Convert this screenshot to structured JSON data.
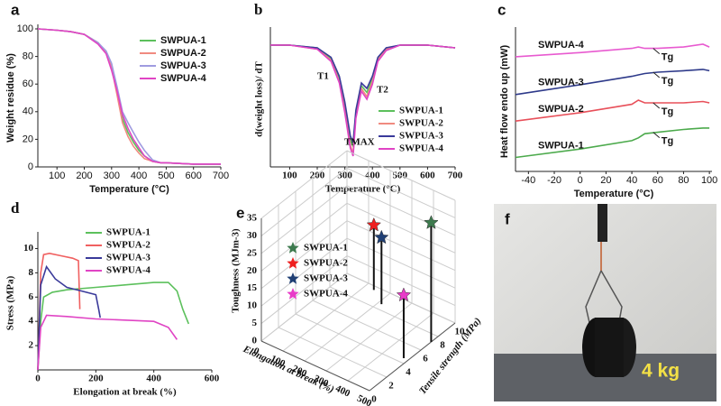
{
  "chart_data": [
    {
      "type": "line",
      "label": "a",
      "xlabel": "Temperature (°C)",
      "ylabel": "Weight residue (%)",
      "x": [
        30,
        100,
        150,
        200,
        250,
        280,
        300,
        320,
        340,
        360,
        380,
        400,
        420,
        450,
        480,
        500,
        600,
        700
      ],
      "series": [
        {
          "name": "SWPUA-1",
          "color": "#5cc05c",
          "values": [
            100,
            99,
            98,
            96,
            90,
            83,
            72,
            55,
            35,
            25,
            18,
            12,
            8,
            4,
            3,
            3,
            2,
            2
          ]
        },
        {
          "name": "SWPUA-2",
          "color": "#f08a80",
          "values": [
            100,
            99,
            98,
            96,
            90,
            83,
            72,
            52,
            32,
            22,
            15,
            10,
            6,
            4,
            3,
            3,
            2,
            2
          ]
        },
        {
          "name": "SWPUA-3",
          "color": "#a09ce0",
          "values": [
            100,
            99,
            98,
            96,
            90,
            84,
            75,
            58,
            40,
            32,
            25,
            18,
            12,
            5,
            3,
            3,
            2,
            2
          ]
        },
        {
          "name": "SWPUA-4",
          "color": "#e044c4",
          "values": [
            100,
            99,
            98,
            96,
            89,
            82,
            70,
            55,
            38,
            28,
            20,
            14,
            8,
            4,
            3,
            3,
            2,
            2
          ]
        }
      ],
      "xlim": [
        30,
        700
      ],
      "xticks": [
        100,
        200,
        300,
        400,
        500,
        600,
        700
      ],
      "ylim": [
        0,
        100
      ],
      "yticks": [
        0,
        20,
        40,
        60,
        80,
        100
      ]
    },
    {
      "type": "line",
      "label": "b",
      "xlabel": "Temperature (°C)",
      "ylabel": "d(weight loss)/ dT",
      "x": [
        30,
        100,
        200,
        250,
        280,
        300,
        320,
        330,
        340,
        360,
        380,
        400,
        420,
        450,
        500,
        600,
        700
      ],
      "series": [
        {
          "name": "SWPUA-1",
          "color": "#5cc05c",
          "values": [
            9,
            9,
            8.8,
            8,
            6.5,
            4.5,
            2,
            1.5,
            4,
            6,
            5.5,
            6.5,
            8,
            8.7,
            9,
            9,
            8.8
          ]
        },
        {
          "name": "SWPUA-2",
          "color": "#f08a80",
          "values": [
            9,
            9,
            8.7,
            7.9,
            6.3,
            4.2,
            1.6,
            1,
            3.8,
            5.8,
            5.2,
            6.3,
            7.9,
            8.7,
            9,
            9,
            8.8
          ]
        },
        {
          "name": "SWPUA-3",
          "color": "#3a3a9a",
          "values": [
            9,
            9,
            8.8,
            8.1,
            6.7,
            4.8,
            2.3,
            1.8,
            4.2,
            6.2,
            5.8,
            6.7,
            8.1,
            8.8,
            9,
            9,
            8.8
          ]
        },
        {
          "name": "SWPUA-4",
          "color": "#e044c4",
          "values": [
            9,
            9,
            8.7,
            7.8,
            6.2,
            4,
            1.4,
            0.8,
            3.6,
            5.6,
            5,
            6.1,
            7.8,
            8.6,
            9,
            9,
            8.8
          ]
        }
      ],
      "annotations": [
        "T1",
        "T2",
        "TMAX"
      ],
      "xlim": [
        30,
        700
      ],
      "xticks": [
        100,
        200,
        300,
        400,
        500,
        600,
        700
      ],
      "ylim": [
        0,
        10
      ]
    },
    {
      "type": "line",
      "label": "c",
      "xlabel": "Temperature (°C)",
      "ylabel": "Heat flow endo up (mW)",
      "x": [
        -50,
        0,
        40,
        45,
        50,
        60,
        80,
        95,
        100
      ],
      "series": [
        {
          "name": "SWPUA-4",
          "color": "#e85ad0",
          "values": [
            8.2,
            8.5,
            8.8,
            8.9,
            8.8,
            8.8,
            8.9,
            9.1,
            8.9
          ]
        },
        {
          "name": "SWPUA-3",
          "color": "#2e3a8a",
          "values": [
            5.5,
            6.2,
            6.8,
            6.9,
            7.0,
            7.1,
            7.2,
            7.3,
            7.2
          ]
        },
        {
          "name": "SWPUA-2",
          "color": "#e8505a",
          "values": [
            3.6,
            4.2,
            4.8,
            5.1,
            4.9,
            4.9,
            4.9,
            5.0,
            4.9
          ]
        },
        {
          "name": "SWPUA-1",
          "color": "#4caa4c",
          "values": [
            1.0,
            1.6,
            2.2,
            2.4,
            2.7,
            2.8,
            3.0,
            3.1,
            3.1
          ]
        }
      ],
      "annotations": [
        "Tg",
        "Tg",
        "Tg",
        "Tg"
      ],
      "xlim": [
        -50,
        102
      ],
      "xticks": [
        -40,
        -20,
        0,
        20,
        40,
        60,
        80,
        100
      ],
      "ylim": [
        0,
        10
      ]
    },
    {
      "type": "line",
      "label": "d",
      "xlabel": "Elongation at break (%)",
      "ylabel": "Stress (MPa)",
      "series": [
        {
          "name": "SWPUA-1",
          "color": "#5cc05c",
          "x": [
            0,
            10,
            20,
            50,
            100,
            200,
            300,
            400,
            450,
            480,
            500,
            520
          ],
          "values": [
            0,
            4,
            6,
            6.4,
            6.6,
            6.8,
            7.0,
            7.2,
            7.2,
            6.5,
            5,
            3.8
          ]
        },
        {
          "name": "SWPUA-2",
          "color": "#f06060",
          "x": [
            0,
            10,
            20,
            40,
            80,
            120,
            140,
            145
          ],
          "values": [
            0,
            8,
            9.5,
            9.6,
            9.4,
            9.2,
            9,
            5
          ]
        },
        {
          "name": "SWPUA-3",
          "color": "#3a3a9a",
          "x": [
            0,
            10,
            30,
            60,
            100,
            150,
            200,
            210,
            215
          ],
          "values": [
            0,
            7,
            8.5,
            7.5,
            6.8,
            6.5,
            6.2,
            5,
            4.3
          ]
        },
        {
          "name": "SWPUA-4",
          "color": "#e044c4",
          "x": [
            0,
            10,
            30,
            100,
            200,
            300,
            400,
            450,
            480
          ],
          "values": [
            0,
            3.5,
            4.5,
            4.4,
            4.2,
            4.1,
            4.0,
            3.5,
            2.5
          ]
        }
      ],
      "xlim": [
        0,
        600
      ],
      "xticks": [
        0,
        200,
        400,
        600
      ],
      "ylim": [
        0,
        11
      ],
      "yticks": [
        2,
        4,
        6,
        8,
        10
      ]
    },
    {
      "type": "scatter3d",
      "label": "e",
      "xlabel": "Elongation at break (%)",
      "ylabel": "Tensile strength (MPa)",
      "zlabel": "Toughness (MJm-3)",
      "series": [
        {
          "name": "SWPUA-1",
          "color": "#3d7a4e",
          "x": [
            500
          ],
          "y": [
            7.2
          ],
          "z": [
            34
          ]
        },
        {
          "name": "SWPUA-2",
          "color": "#ee2020",
          "x": [
            140
          ],
          "y": [
            9.6
          ],
          "z": [
            18.5
          ]
        },
        {
          "name": "SWPUA-3",
          "color": "#1f3f74",
          "x": [
            215
          ],
          "y": [
            8.6
          ],
          "z": [
            19
          ]
        },
        {
          "name": "SWPUA-4",
          "color": "#e83cc8",
          "x": [
            480
          ],
          "y": [
            4.5
          ],
          "z": [
            18
          ]
        }
      ],
      "xlim": [
        0,
        500
      ],
      "xticks": [
        0,
        100,
        200,
        300,
        400,
        500
      ],
      "ylim": [
        0,
        10
      ],
      "yticks": [
        0,
        2,
        4,
        6,
        8,
        10
      ],
      "zlim": [
        0,
        35
      ],
      "zticks": [
        0,
        5,
        10,
        15,
        20,
        25,
        30,
        35
      ]
    }
  ],
  "photo": {
    "label": "f",
    "caption": "4 kg"
  }
}
